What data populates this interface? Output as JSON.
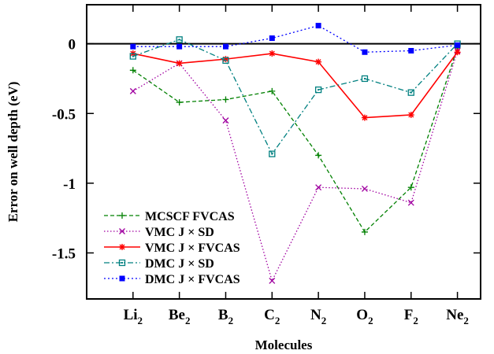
{
  "chart_data": {
    "type": "line",
    "title": "",
    "xlabel": "Molecules",
    "ylabel": "Error on well depth (eV)",
    "categories": [
      {
        "base": "Li",
        "sub": "2"
      },
      {
        "base": "Be",
        "sub": "2"
      },
      {
        "base": "B",
        "sub": "2"
      },
      {
        "base": "C",
        "sub": "2"
      },
      {
        "base": "N",
        "sub": "2"
      },
      {
        "base": "O",
        "sub": "2"
      },
      {
        "base": "F",
        "sub": "2"
      },
      {
        "base": "Ne",
        "sub": "2"
      }
    ],
    "xlim": [
      -1,
      7.5
    ],
    "ylim": [
      -1.83,
      0.28
    ],
    "yticks": [
      {
        "value": 0,
        "label": "0"
      },
      {
        "value": -0.5,
        "label": "-0.5"
      },
      {
        "value": -1,
        "label": "-1"
      },
      {
        "value": -1.5,
        "label": "-1.5"
      }
    ],
    "zero_line": true,
    "grid": false,
    "legend_position": "bottom-left",
    "series": [
      {
        "name": "MCSCF FVCAS",
        "color": "#008000",
        "dash": "5,3",
        "marker": "plus",
        "values": [
          -0.19,
          -0.42,
          -0.4,
          -0.34,
          -0.8,
          -1.35,
          -1.03,
          -0.03
        ]
      },
      {
        "name": "VMC J × SD",
        "color": "#a000a0",
        "dash": "1.5,2.5",
        "marker": "cross",
        "values": [
          -0.34,
          -0.14,
          -0.55,
          -1.7,
          -1.03,
          -1.04,
          -1.14,
          -0.05
        ]
      },
      {
        "name": "VMC J × FVCAS",
        "color": "#ff0000",
        "dash": "",
        "marker": "star",
        "values": [
          -0.07,
          -0.14,
          -0.11,
          -0.07,
          -0.13,
          -0.53,
          -0.51,
          -0.06
        ]
      },
      {
        "name": "DMC J × SD",
        "color": "#008080",
        "dash": "7,3,2,3",
        "marker": "open-square",
        "values": [
          -0.09,
          0.03,
          -0.12,
          -0.79,
          -0.33,
          -0.25,
          -0.35,
          0.0
        ]
      },
      {
        "name": "DMC J × FVCAS",
        "color": "#0000ff",
        "dash": "2,3",
        "marker": "filled-square",
        "values": [
          -0.02,
          -0.02,
          -0.02,
          0.04,
          0.13,
          -0.06,
          -0.05,
          -0.01
        ]
      }
    ]
  }
}
